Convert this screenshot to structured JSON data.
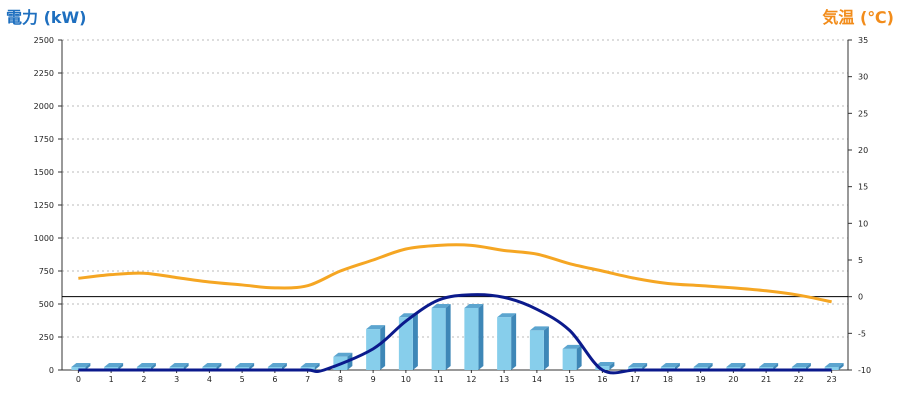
{
  "header": {
    "left_axis_title": "電力 (kW)",
    "right_axis_title": "気温 (℃)"
  },
  "colors": {
    "bar_face": "#87ceeb",
    "bar_side": "#3e87b7",
    "bar_top": "#5ca5cf",
    "temperature_line": "#f5a623",
    "curve_line": "#0b1a8c",
    "grid": "#bbbbbb"
  },
  "chart_data": {
    "type": "bar",
    "categories": [
      "0",
      "1",
      "2",
      "3",
      "4",
      "5",
      "6",
      "7",
      "8",
      "9",
      "10",
      "11",
      "12",
      "13",
      "14",
      "15",
      "16",
      "17",
      "18",
      "19",
      "20",
      "21",
      "22",
      "23"
    ],
    "y_left": {
      "label": "電力 (kW)",
      "range": [
        0,
        2500
      ],
      "ticks": [
        "0",
        "250",
        "500",
        "750",
        "1000",
        "1250",
        "1500",
        "1750",
        "2000",
        "2250",
        "2500"
      ]
    },
    "y_right": {
      "label": "気温 (℃)",
      "range": [
        -10,
        35
      ],
      "ticks": [
        "-10",
        "-5",
        "0",
        "5",
        "10",
        "15",
        "20",
        "25",
        "30",
        "35"
      ]
    },
    "grid": true,
    "series": [
      {
        "kind": "bar",
        "axis": "left",
        "values": [
          0,
          0,
          0,
          0,
          0,
          0,
          0,
          0,
          100,
          310,
          400,
          470,
          470,
          400,
          300,
          160,
          30,
          0,
          0,
          0,
          0,
          0,
          0,
          0
        ]
      },
      {
        "kind": "line",
        "axis": "left",
        "values": [
          0,
          0,
          0,
          0,
          0,
          0,
          0,
          0,
          0,
          160,
          370,
          530,
          570,
          550,
          460,
          300,
          0,
          0,
          0,
          0,
          0,
          0,
          0,
          0
        ],
        "x": [
          0,
          1,
          2,
          3,
          4,
          5,
          6,
          7,
          7.5,
          9,
          10,
          11,
          12,
          13,
          14,
          15,
          16,
          17,
          18,
          19,
          20,
          21,
          22,
          23
        ]
      },
      {
        "kind": "line",
        "axis": "right",
        "values": [
          2.5,
          3.0,
          3.2,
          2.6,
          2.0,
          1.6,
          1.2,
          1.5,
          3.5,
          5.0,
          6.5,
          7.0,
          7.0,
          6.3,
          5.8,
          4.5,
          3.5,
          2.5,
          1.8,
          1.5,
          1.2,
          0.8,
          0.2,
          -0.7
        ]
      }
    ],
    "reference_lines": [
      {
        "axis": "right",
        "value": 0
      }
    ]
  }
}
